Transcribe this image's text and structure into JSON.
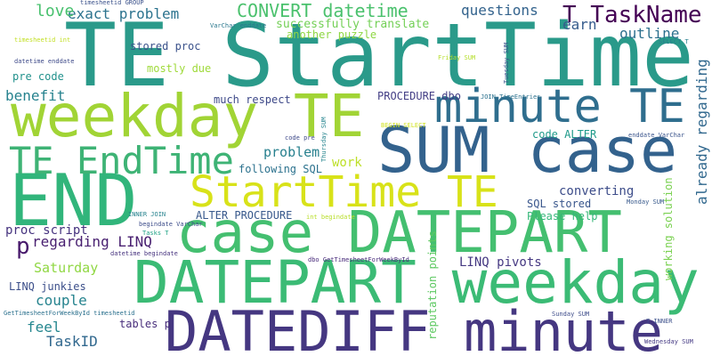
{
  "words": [
    {
      "text": "TE StartTime",
      "color": "#2a9a8a"
    },
    {
      "text": "SUM case",
      "color": "#33628d"
    },
    {
      "text": "weekday TE",
      "color": "#a1d435"
    },
    {
      "text": "END",
      "color": "#31b57b"
    },
    {
      "text": "minute TE",
      "color": "#2f6e8e"
    },
    {
      "text": "case DATEPART",
      "color": "#44bf70"
    },
    {
      "text": "DATEPART weekday",
      "color": "#3bbb75"
    },
    {
      "text": "StartTime TE",
      "color": "#d8e219"
    },
    {
      "text": "DATEDIFF minute",
      "color": "#453781"
    },
    {
      "text": "TE EndTime",
      "color": "#3eb375"
    },
    {
      "text": "CONVERT datetime",
      "color": "#4ac16d"
    },
    {
      "text": "T TaskName",
      "color": "#440154"
    },
    {
      "text": "exact problem",
      "color": "#2c738e"
    },
    {
      "text": "love",
      "color": "#48c16e"
    },
    {
      "text": "questions",
      "color": "#33638d"
    },
    {
      "text": "earn",
      "color": "#365c8d"
    },
    {
      "text": "outline",
      "color": "#2d708e"
    },
    {
      "text": "already regarding",
      "color": "#31688e"
    },
    {
      "text": "successfully translate",
      "color": "#73d056"
    },
    {
      "text": "another puzzle",
      "color": "#8fd744"
    },
    {
      "text": "stored proc",
      "color": "#3b528b"
    },
    {
      "text": "mostly due",
      "color": "#9fda3a"
    },
    {
      "text": "pre code",
      "color": "#21918c"
    },
    {
      "text": "benefit",
      "color": "#26828e"
    },
    {
      "text": "much respect",
      "color": "#3e4989"
    },
    {
      "text": "PROCEDURE dbo",
      "color": "#433e85"
    },
    {
      "text": "problem",
      "color": "#27808e"
    },
    {
      "text": "work",
      "color": "#bddf26"
    },
    {
      "text": "following SQL",
      "color": "#2c728e"
    },
    {
      "text": "converting",
      "color": "#3d4d8a"
    },
    {
      "text": "SQL stored",
      "color": "#39568c"
    },
    {
      "text": "Please help",
      "color": "#35b779"
    },
    {
      "text": "code ALTER",
      "color": "#1f9a8a"
    },
    {
      "text": "ALTER PROCEDURE",
      "color": "#38598c"
    },
    {
      "text": "proc script",
      "color": "#46337f"
    },
    {
      "text": "regarding LINQ",
      "color": "#481f70"
    },
    {
      "text": "p",
      "color": "#481a6c"
    },
    {
      "text": "Saturday",
      "color": "#90d743"
    },
    {
      "text": "LINQ junkies",
      "color": "#3c4f8a"
    },
    {
      "text": "couple",
      "color": "#25838e"
    },
    {
      "text": "feel",
      "color": "#24868e"
    },
    {
      "text": "TaskID",
      "color": "#31688e"
    },
    {
      "text": "tables p",
      "color": "#472d7b"
    },
    {
      "text": "LINQ pivots",
      "color": "#453882"
    },
    {
      "text": "working solution",
      "color": "#7ad151"
    },
    {
      "text": "reputation points",
      "color": "#5ec962"
    },
    {
      "text": "timesheetid GROUP",
      "color": "#3b528b"
    },
    {
      "text": "timesheetid int",
      "color": "#c2df23"
    },
    {
      "text": "datetime enddate",
      "color": "#3e4a89"
    },
    {
      "text": "VarChar enddate",
      "color": "#2a788e"
    },
    {
      "text": "JOIN TimeEntries",
      "color": "#2c728e"
    },
    {
      "text": "Friday SUM",
      "color": "#b5de2b"
    },
    {
      "text": "Tuesday SUM",
      "color": "#3b528b"
    },
    {
      "text": "SELECT T",
      "color": "#277f8e"
    },
    {
      "text": "BEGIN SELECT",
      "color": "#d0e11c"
    },
    {
      "text": "Thursday SUM",
      "color": "#25848e"
    },
    {
      "text": "code pre",
      "color": "#3e4989"
    },
    {
      "text": "enddate VarChar",
      "color": "#3a548c"
    },
    {
      "text": "Monday SUM",
      "color": "#38598c"
    },
    {
      "text": "INNER JOIN",
      "color": "#26828e"
    },
    {
      "text": "begindate VarChar",
      "color": "#3d4d8a"
    },
    {
      "text": "Tasks T",
      "color": "#20a386"
    },
    {
      "text": "datetime begindate",
      "color": "#46327e"
    },
    {
      "text": "int begindate",
      "color": "#b8de29"
    },
    {
      "text": "dbo GetTimesheetForWeekById",
      "color": "#472a7a"
    },
    {
      "text": "GetTimesheetForWeekById timesheetid",
      "color": "#2c718e"
    },
    {
      "text": "Sunday SUM",
      "color": "#3e4c8a"
    },
    {
      "text": "T INNER",
      "color": "#3c508b"
    },
    {
      "text": "Wednesday SUM",
      "color": "#443983"
    }
  ]
}
